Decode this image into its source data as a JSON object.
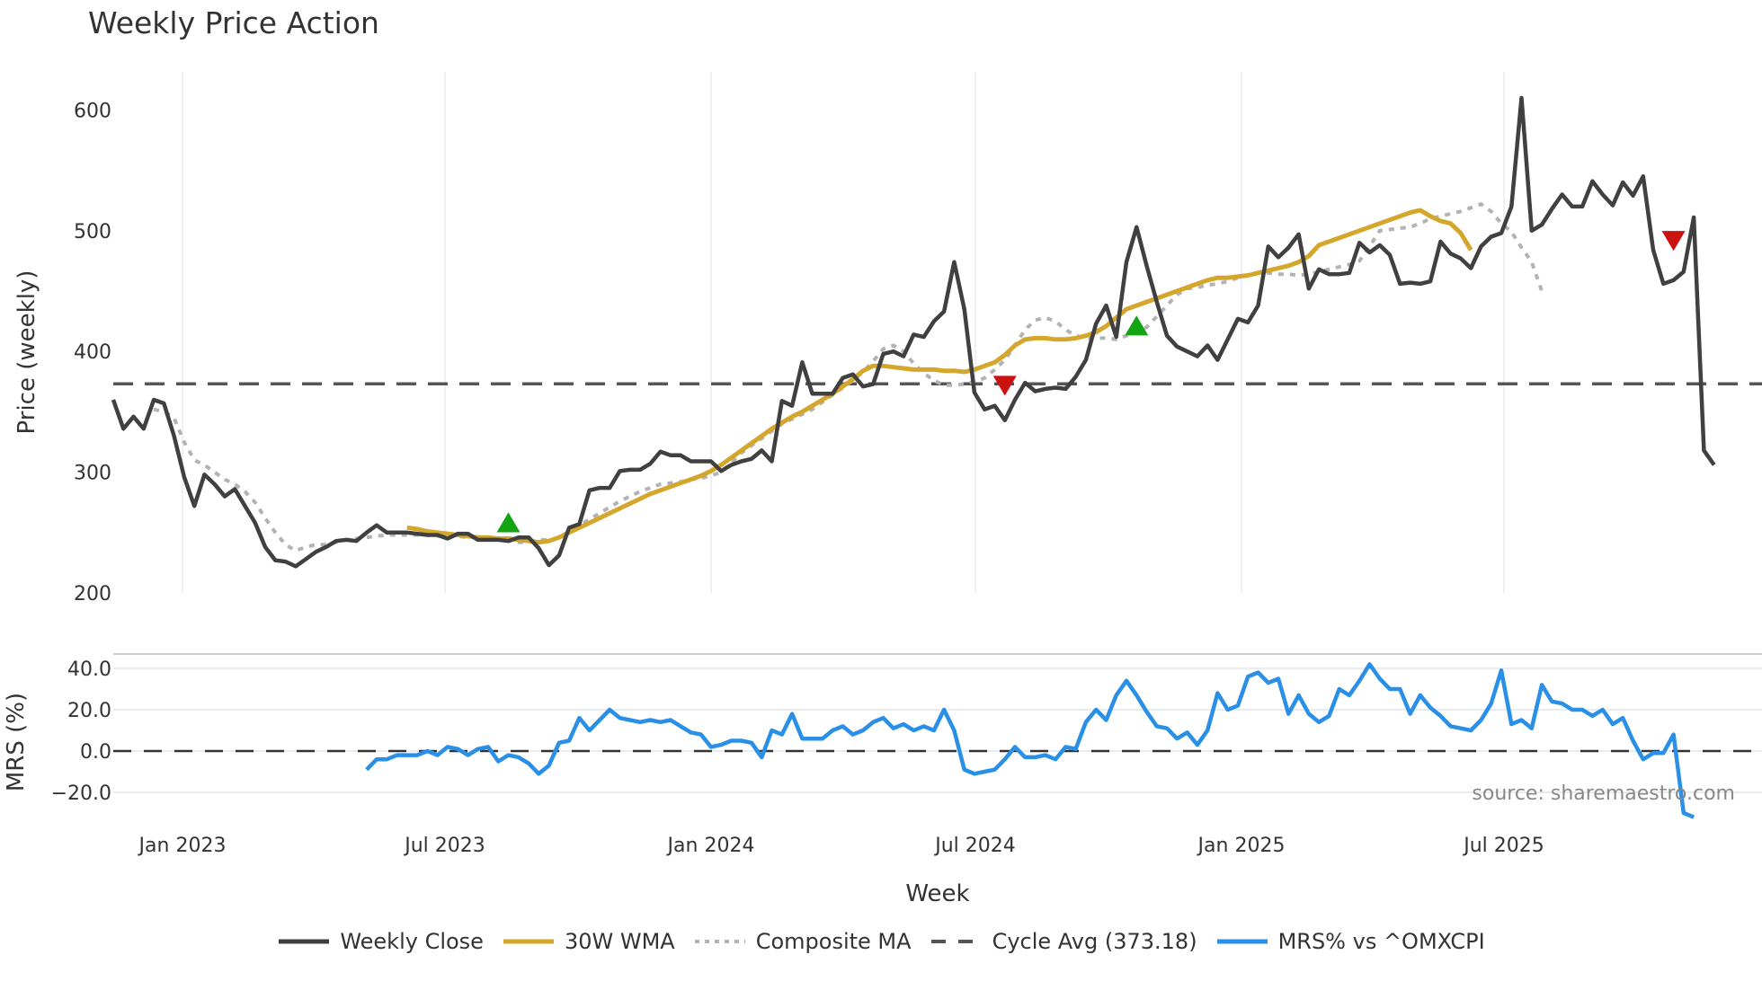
{
  "title": "Weekly Price Action",
  "source_text": "source: sharemaestro.com",
  "colors": {
    "close": "#404040",
    "wma": "#d4a72c",
    "composite": "#b3b3b3",
    "cycle": "#555555",
    "mrs": "#2a8fe6",
    "buy": "#13a313",
    "sell": "#cc1111",
    "grid": "#e8ebf0"
  },
  "legend": [
    {
      "label": "Weekly Close",
      "key": "close",
      "style": "solid"
    },
    {
      "label": "30W WMA",
      "key": "wma",
      "style": "solid"
    },
    {
      "label": "Composite MA",
      "key": "composite",
      "style": "dotted"
    },
    {
      "label": "Cycle Avg (373.18)",
      "key": "cycle",
      "style": "dashed"
    },
    {
      "label": "MRS% vs ^OMXCPI",
      "key": "mrs",
      "style": "solid"
    }
  ],
  "chart_data": [
    {
      "type": "line",
      "title": "Weekly Price Action",
      "xlabel": "Week",
      "ylabel": "Price (weekly)",
      "ylim": [
        200,
        630
      ],
      "yticks": [
        200,
        300,
        400,
        500,
        600
      ],
      "xticks": [
        "Jan 2023",
        "Jul 2023",
        "Jan 2024",
        "Jul 2024",
        "Jan 2025",
        "Jul 2025"
      ],
      "x_start": "2022-11-14",
      "x_step": "1 week",
      "cycle_avg": 373.18,
      "grid": true,
      "series": [
        {
          "name": "Weekly Close",
          "start_index": 0,
          "values": [
            360,
            336,
            346,
            336,
            360,
            357,
            330,
            296,
            272,
            298,
            290,
            280,
            286,
            272,
            258,
            238,
            227,
            226,
            222,
            228,
            234,
            238,
            243,
            244,
            243,
            250,
            256,
            250,
            250,
            250,
            249,
            248,
            248,
            245,
            249,
            249,
            244,
            244,
            244,
            243,
            246,
            246,
            237,
            223,
            231,
            254,
            257,
            285,
            287,
            287,
            301,
            302,
            302,
            307,
            317,
            314,
            314,
            309,
            309,
            309,
            301,
            306,
            309,
            311,
            318,
            309,
            359,
            355,
            391,
            365,
            365,
            365,
            378,
            381,
            371,
            373,
            398,
            400,
            396,
            414,
            412,
            425,
            433,
            474,
            435,
            366,
            352,
            355,
            343,
            360,
            374,
            367,
            369,
            370,
            369,
            379,
            393,
            423,
            438,
            412,
            474,
            503,
            471,
            441,
            413,
            404,
            400,
            396,
            405,
            393,
            410,
            427,
            424,
            438,
            487,
            478,
            486,
            497,
            452,
            468,
            464,
            464,
            465,
            490,
            482,
            488,
            480,
            456,
            457,
            456,
            458,
            491,
            481,
            477,
            469,
            487,
            495,
            498,
            520,
            610,
            500,
            505,
            518,
            530,
            520,
            520,
            541,
            530,
            521,
            540,
            529,
            545,
            484,
            456,
            459,
            466,
            511,
            318,
            306
          ]
        },
        {
          "name": "30W WMA",
          "start_index": 29,
          "values": [
            254,
            253,
            251,
            250,
            249,
            248,
            247,
            246,
            246,
            245,
            245,
            244,
            243,
            242,
            243,
            246,
            250,
            254,
            258,
            262,
            266,
            270,
            274,
            278,
            282,
            285,
            288,
            291,
            294,
            297,
            301,
            306,
            312,
            318,
            324,
            330,
            336,
            341,
            346,
            350,
            355,
            360,
            365,
            371,
            377,
            384,
            388,
            388,
            387,
            386,
            385,
            385,
            385,
            384,
            384,
            383,
            385,
            388,
            391,
            397,
            405,
            410,
            411,
            411,
            410,
            410,
            411,
            413,
            416,
            421,
            428,
            435,
            438,
            441,
            444,
            447,
            450,
            453,
            456,
            459,
            461,
            461,
            462,
            463,
            465,
            467,
            469,
            471,
            474,
            479,
            488,
            491,
            494,
            497,
            500,
            503,
            506,
            509,
            512,
            515,
            517,
            512,
            508,
            506,
            498,
            484
          ]
        },
        {
          "name": "Composite MA",
          "start_index": 4,
          "values": [
            352,
            350,
            345,
            325,
            310,
            306,
            300,
            294,
            290,
            284,
            275,
            262,
            250,
            240,
            235,
            238,
            240,
            240,
            242,
            244,
            245,
            246,
            247,
            248,
            248,
            248,
            248,
            248,
            247,
            247,
            247,
            246,
            246,
            245,
            244,
            244,
            242,
            242,
            244,
            244,
            246,
            251,
            256,
            261,
            266,
            271,
            276,
            280,
            284,
            287,
            290,
            291,
            292,
            294,
            295,
            297,
            300,
            308,
            316,
            322,
            328,
            334,
            340,
            344,
            348,
            352,
            358,
            364,
            370,
            376,
            383,
            392,
            402,
            405,
            400,
            390,
            382,
            376,
            372,
            372,
            373,
            375,
            378,
            385,
            393,
            405,
            418,
            426,
            428,
            425,
            418,
            413,
            411,
            411,
            411,
            410,
            413,
            416,
            420,
            429,
            438,
            447,
            452,
            453,
            455,
            456,
            458,
            461,
            463,
            465,
            465,
            464,
            464,
            463,
            464,
            466,
            468,
            470,
            472,
            475,
            487,
            500,
            501,
            502,
            503,
            506,
            510,
            512,
            514,
            516,
            519,
            522,
            516,
            506,
            499,
            486,
            474,
            450
          ]
        }
      ],
      "markers": [
        {
          "type": "buy",
          "index": 39,
          "value": 258
        },
        {
          "type": "sell",
          "index": 88,
          "value": 372
        },
        {
          "type": "buy",
          "index": 101,
          "value": 421
        },
        {
          "type": "sell",
          "index": 154,
          "value": 492
        }
      ]
    },
    {
      "type": "line",
      "xlabel": "Week",
      "ylabel": "MRS (%)",
      "ylim": [
        -30,
        47
      ],
      "yticks": [
        -20.0,
        0.0,
        20.0,
        40.0
      ],
      "ytick_labels": [
        "−20.0",
        "0.0",
        "20.0",
        "40.0"
      ],
      "series": [
        {
          "name": "MRS% vs ^OMXCPI",
          "start_index": 25,
          "values": [
            -9,
            -4,
            -4,
            -2,
            -2,
            -2,
            0,
            -2,
            2,
            1,
            -2,
            1,
            2,
            -5,
            -2,
            -3,
            -6,
            -11,
            -7,
            4,
            5,
            16,
            10,
            15,
            20,
            16,
            15,
            14,
            15,
            14,
            15,
            12,
            9,
            8,
            2,
            3,
            5,
            5,
            4,
            -3,
            10,
            8,
            18,
            6,
            6,
            6,
            10,
            12,
            8,
            10,
            14,
            16,
            11,
            13,
            10,
            12,
            10,
            20,
            10,
            -9,
            -11,
            -10,
            -9,
            -4,
            2,
            -3,
            -3,
            -2,
            -4,
            2,
            1,
            14,
            20,
            15,
            27,
            34,
            27,
            19,
            12,
            11,
            6,
            9,
            3,
            10,
            28,
            20,
            22,
            36,
            38,
            33,
            35,
            18,
            27,
            18,
            14,
            17,
            30,
            27,
            34,
            42,
            35,
            30,
            30,
            18,
            27,
            21,
            17,
            12,
            11,
            10,
            15,
            23,
            39,
            13,
            15,
            11,
            32,
            24,
            23,
            20,
            20,
            17,
            20,
            13,
            16,
            5,
            -4,
            -1,
            -1,
            8,
            -30,
            -32
          ]
        }
      ],
      "zero_line": 0
    }
  ]
}
